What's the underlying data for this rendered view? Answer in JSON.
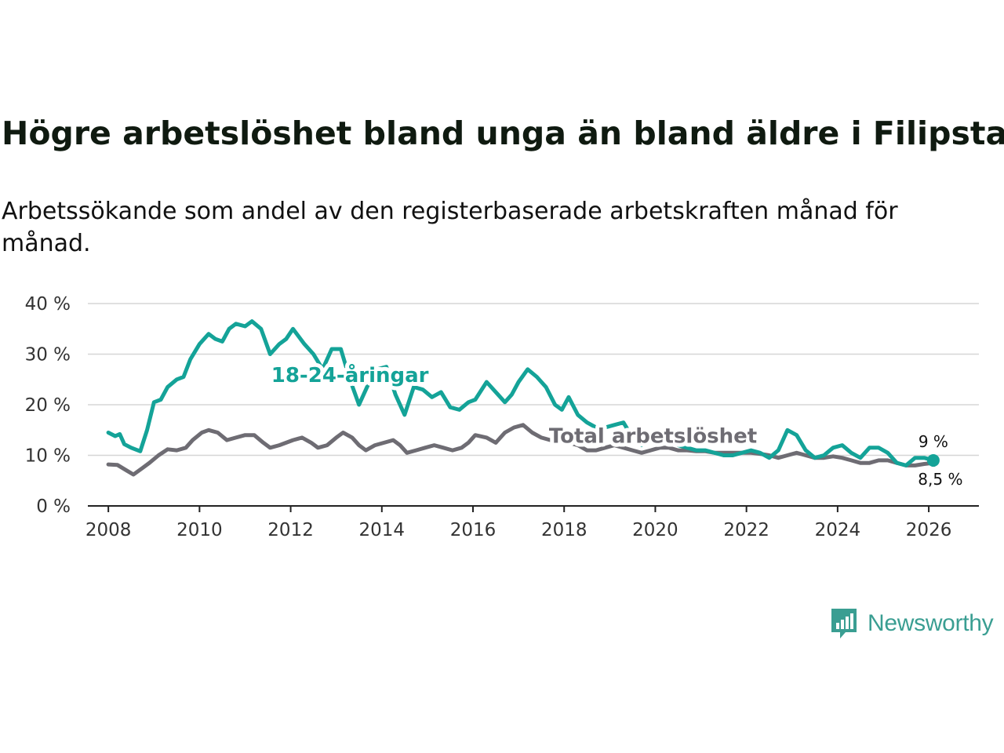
{
  "title": "Högre arbetslöshet bland unga än bland äldre i Filipstad",
  "subtitle": "Arbetssökande som andel av den registerbaserade arbetskraften månad för månad.",
  "brand": {
    "name": "Newsworthy",
    "color": "#3a9e92"
  },
  "colors": {
    "youth": "#14a398",
    "total": "#6e6c73",
    "grid": "#d6d6d6",
    "axis": "#222222"
  },
  "chart_data": {
    "type": "line",
    "title": "Högre arbetslöshet bland unga än bland äldre i Filipstad",
    "xlabel": "",
    "ylabel": "",
    "xlim": [
      2007.55,
      2027.1
    ],
    "ylim": [
      0,
      40
    ],
    "grid": true,
    "x_ticks": [
      2008,
      2010,
      2012,
      2014,
      2016,
      2018,
      2020,
      2022,
      2024,
      2026
    ],
    "x_tick_labels": [
      "2008",
      "2010",
      "2012",
      "2014",
      "2016",
      "2018",
      "2020",
      "2022",
      "2024",
      "2026"
    ],
    "y_ticks": [
      0,
      10,
      20,
      30,
      40
    ],
    "y_tick_labels": [
      "0 %",
      "10 %",
      "20 %",
      "30 %",
      "40 %"
    ],
    "series": [
      {
        "name": "18-24-åringar",
        "label": "18-24-åringar",
        "end_label": "9 %",
        "x": [
          2008.0,
          2008.15,
          2008.25,
          2008.35,
          2008.5,
          2008.7,
          2008.85,
          2009.0,
          2009.15,
          2009.3,
          2009.5,
          2009.65,
          2009.8,
          2010.0,
          2010.2,
          2010.35,
          2010.5,
          2010.65,
          2010.8,
          2011.0,
          2011.15,
          2011.35,
          2011.55,
          2011.75,
          2011.9,
          2012.05,
          2012.3,
          2012.5,
          2012.7,
          2012.9,
          2013.1,
          2013.3,
          2013.5,
          2013.7,
          2013.9,
          2014.1,
          2014.3,
          2014.5,
          2014.7,
          2014.9,
          2015.1,
          2015.3,
          2015.5,
          2015.7,
          2015.9,
          2016.05,
          2016.3,
          2016.5,
          2016.7,
          2016.85,
          2017.0,
          2017.2,
          2017.4,
          2017.6,
          2017.8,
          2017.95,
          2018.1,
          2018.3,
          2018.5,
          2018.7,
          2018.9,
          2019.1,
          2019.3,
          2019.5,
          2019.7,
          2019.9,
          2020.1,
          2020.3,
          2020.5,
          2020.7,
          2020.9,
          2021.1,
          2021.3,
          2021.5,
          2021.7,
          2021.9,
          2022.1,
          2022.3,
          2022.5,
          2022.7,
          2022.9,
          2023.1,
          2023.3,
          2023.5,
          2023.7,
          2023.9,
          2024.1,
          2024.3,
          2024.5,
          2024.7,
          2024.9,
          2025.1,
          2025.3,
          2025.5,
          2025.7,
          2025.9,
          2026.1
        ],
        "values": [
          14.5,
          13.8,
          14.2,
          12.2,
          11.5,
          10.8,
          15.0,
          20.5,
          21.0,
          23.5,
          25.0,
          25.5,
          29.0,
          32.0,
          34.0,
          33.0,
          32.5,
          35.0,
          36.0,
          35.5,
          36.5,
          35.0,
          30.0,
          32.0,
          33.0,
          35.0,
          32.0,
          30.0,
          27.0,
          31.0,
          31.0,
          25.0,
          20.0,
          24.0,
          27.0,
          27.5,
          22.0,
          18.0,
          23.5,
          23.0,
          21.5,
          22.5,
          19.5,
          19.0,
          20.5,
          21.0,
          24.5,
          22.5,
          20.5,
          22.0,
          24.5,
          27.0,
          25.5,
          23.5,
          20.0,
          19.0,
          21.5,
          18.0,
          16.5,
          15.5,
          15.5,
          16.0,
          16.5,
          13.5,
          12.0,
          13.0,
          14.5,
          13.5,
          12.0,
          11.5,
          11.0,
          11.0,
          10.5,
          10.0,
          10.0,
          10.5,
          11.0,
          10.5,
          9.5,
          11.0,
          15.0,
          14.0,
          11.0,
          9.5,
          10.0,
          11.5,
          12.0,
          10.5,
          9.5,
          11.5,
          11.5,
          10.5,
          8.5,
          8.0,
          9.5,
          9.5,
          9.0
        ]
      },
      {
        "name": "Total arbetslöshet",
        "label": "Total arbetslöshet",
        "end_label": "8,5 %",
        "x": [
          2008.0,
          2008.2,
          2008.4,
          2008.55,
          2008.75,
          2008.9,
          2009.1,
          2009.3,
          2009.5,
          2009.7,
          2009.85,
          2010.05,
          2010.2,
          2010.4,
          2010.6,
          2010.8,
          2011.0,
          2011.2,
          2011.4,
          2011.55,
          2011.75,
          2011.9,
          2012.05,
          2012.25,
          2012.45,
          2012.6,
          2012.8,
          2013.0,
          2013.15,
          2013.35,
          2013.5,
          2013.65,
          2013.85,
          2014.05,
          2014.25,
          2014.4,
          2014.55,
          2014.75,
          2014.95,
          2015.15,
          2015.35,
          2015.55,
          2015.75,
          2015.9,
          2016.05,
          2016.3,
          2016.5,
          2016.7,
          2016.9,
          2017.1,
          2017.3,
          2017.5,
          2017.7,
          2017.9,
          2018.1,
          2018.3,
          2018.5,
          2018.7,
          2018.9,
          2019.1,
          2019.3,
          2019.5,
          2019.7,
          2019.9,
          2020.1,
          2020.3,
          2020.5,
          2020.7,
          2020.9,
          2021.1,
          2021.3,
          2021.5,
          2021.7,
          2021.9,
          2022.1,
          2022.3,
          2022.5,
          2022.7,
          2022.9,
          2023.1,
          2023.3,
          2023.5,
          2023.7,
          2023.9,
          2024.1,
          2024.3,
          2024.5,
          2024.7,
          2024.9,
          2025.1,
          2025.3,
          2025.5,
          2025.7,
          2025.9,
          2026.1
        ],
        "values": [
          8.2,
          8.1,
          7.0,
          6.2,
          7.5,
          8.5,
          10.0,
          11.2,
          11.0,
          11.5,
          13.0,
          14.5,
          15.0,
          14.5,
          13.0,
          13.5,
          14.0,
          14.0,
          12.5,
          11.5,
          12.0,
          12.5,
          13.0,
          13.5,
          12.5,
          11.5,
          12.0,
          13.5,
          14.5,
          13.5,
          12.0,
          11.0,
          12.0,
          12.5,
          13.0,
          12.0,
          10.5,
          11.0,
          11.5,
          12.0,
          11.5,
          11.0,
          11.5,
          12.5,
          14.0,
          13.5,
          12.5,
          14.5,
          15.5,
          16.0,
          14.5,
          13.5,
          13.0,
          12.5,
          12.5,
          12.0,
          11.0,
          11.0,
          11.5,
          12.0,
          11.5,
          11.0,
          10.5,
          11.0,
          11.5,
          11.5,
          11.0,
          11.0,
          10.8,
          10.8,
          10.5,
          10.5,
          10.5,
          10.5,
          10.5,
          10.3,
          10.0,
          9.5,
          10.0,
          10.5,
          10.0,
          9.5,
          9.5,
          9.8,
          9.5,
          9.0,
          8.5,
          8.5,
          9.0,
          9.0,
          8.5,
          8.0,
          8.0,
          8.3,
          8.5
        ]
      }
    ]
  }
}
